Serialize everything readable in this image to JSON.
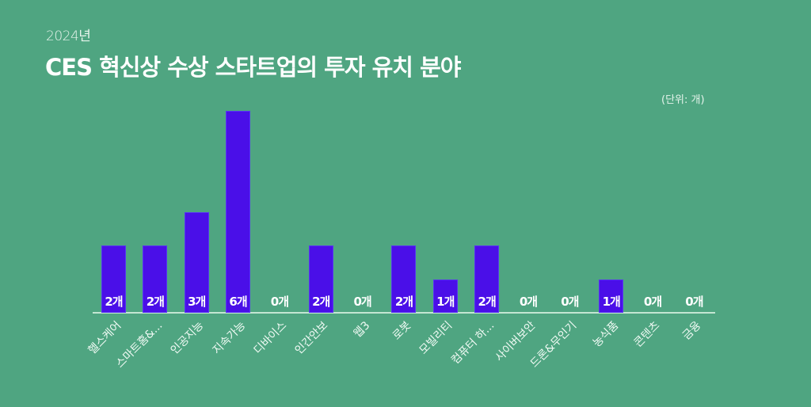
{
  "header": {
    "subtitle": "2024년",
    "title": "CES 혁신상 수상 스타트업의 투자 유치 분야",
    "unit": "(단위: 개)"
  },
  "colors": {
    "background": "#4fa581",
    "bar": "#4a0fe8",
    "axis": "#c3e6d2",
    "text": "#ffffff"
  },
  "chart_data": {
    "type": "bar",
    "title": "CES 혁신상 수상 스타트업의 투자 유치 분야",
    "subtitle": "2024년",
    "unit": "(단위: 개)",
    "xlabel": "",
    "ylabel": "",
    "ylim": [
      0,
      6
    ],
    "grid": false,
    "legend": null,
    "categories": [
      "헬스케어",
      "스마트홈&...",
      "인공지능",
      "지속가능",
      "디바이스",
      "인간안보",
      "웹3",
      "로봇",
      "모빌리티",
      "컴퓨터 하...",
      "사이버보안",
      "드론&무인기",
      "농식품",
      "콘텐츠",
      "금융"
    ],
    "values": [
      2,
      2,
      3,
      6,
      0,
      2,
      0,
      2,
      1,
      2,
      0,
      0,
      1,
      0,
      0
    ],
    "data_labels": [
      "2개",
      "2개",
      "3개",
      "6개",
      "0개",
      "2개",
      "0개",
      "2개",
      "1개",
      "2개",
      "0개",
      "0개",
      "1개",
      "0개",
      "0개"
    ]
  }
}
